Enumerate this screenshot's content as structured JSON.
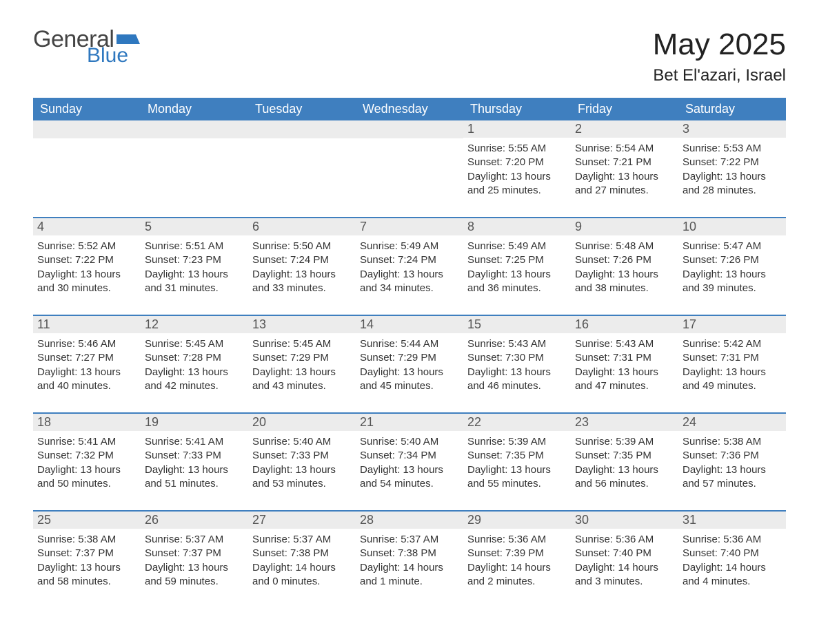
{
  "brand": {
    "word1": "General",
    "word2": "Blue",
    "flag_color": "#2f78bf",
    "text_gray": "#444444"
  },
  "title": "May 2025",
  "location": "Bet El'azari, Israel",
  "colors": {
    "header_bg": "#3f7fbf",
    "header_text": "#ffffff",
    "daynum_bg": "#ececec",
    "daynum_text": "#555555",
    "body_text": "#333333",
    "rule": "#3f7fbf",
    "page_bg": "#ffffff"
  },
  "fonts": {
    "title_size": 44,
    "location_size": 24,
    "dayhead_size": 18,
    "daynum_size": 18,
    "info_size": 15
  },
  "dayNames": [
    "Sunday",
    "Monday",
    "Tuesday",
    "Wednesday",
    "Thursday",
    "Friday",
    "Saturday"
  ],
  "labels": {
    "sunrise": "Sunrise: ",
    "sunset": "Sunset: ",
    "daylight": "Daylight: "
  },
  "weeks": [
    [
      null,
      null,
      null,
      null,
      {
        "n": "1",
        "sunrise": "5:55 AM",
        "sunset": "7:20 PM",
        "daylight": "13 hours and 25 minutes."
      },
      {
        "n": "2",
        "sunrise": "5:54 AM",
        "sunset": "7:21 PM",
        "daylight": "13 hours and 27 minutes."
      },
      {
        "n": "3",
        "sunrise": "5:53 AM",
        "sunset": "7:22 PM",
        "daylight": "13 hours and 28 minutes."
      }
    ],
    [
      {
        "n": "4",
        "sunrise": "5:52 AM",
        "sunset": "7:22 PM",
        "daylight": "13 hours and 30 minutes."
      },
      {
        "n": "5",
        "sunrise": "5:51 AM",
        "sunset": "7:23 PM",
        "daylight": "13 hours and 31 minutes."
      },
      {
        "n": "6",
        "sunrise": "5:50 AM",
        "sunset": "7:24 PM",
        "daylight": "13 hours and 33 minutes."
      },
      {
        "n": "7",
        "sunrise": "5:49 AM",
        "sunset": "7:24 PM",
        "daylight": "13 hours and 34 minutes."
      },
      {
        "n": "8",
        "sunrise": "5:49 AM",
        "sunset": "7:25 PM",
        "daylight": "13 hours and 36 minutes."
      },
      {
        "n": "9",
        "sunrise": "5:48 AM",
        "sunset": "7:26 PM",
        "daylight": "13 hours and 38 minutes."
      },
      {
        "n": "10",
        "sunrise": "5:47 AM",
        "sunset": "7:26 PM",
        "daylight": "13 hours and 39 minutes."
      }
    ],
    [
      {
        "n": "11",
        "sunrise": "5:46 AM",
        "sunset": "7:27 PM",
        "daylight": "13 hours and 40 minutes."
      },
      {
        "n": "12",
        "sunrise": "5:45 AM",
        "sunset": "7:28 PM",
        "daylight": "13 hours and 42 minutes."
      },
      {
        "n": "13",
        "sunrise": "5:45 AM",
        "sunset": "7:29 PM",
        "daylight": "13 hours and 43 minutes."
      },
      {
        "n": "14",
        "sunrise": "5:44 AM",
        "sunset": "7:29 PM",
        "daylight": "13 hours and 45 minutes."
      },
      {
        "n": "15",
        "sunrise": "5:43 AM",
        "sunset": "7:30 PM",
        "daylight": "13 hours and 46 minutes."
      },
      {
        "n": "16",
        "sunrise": "5:43 AM",
        "sunset": "7:31 PM",
        "daylight": "13 hours and 47 minutes."
      },
      {
        "n": "17",
        "sunrise": "5:42 AM",
        "sunset": "7:31 PM",
        "daylight": "13 hours and 49 minutes."
      }
    ],
    [
      {
        "n": "18",
        "sunrise": "5:41 AM",
        "sunset": "7:32 PM",
        "daylight": "13 hours and 50 minutes."
      },
      {
        "n": "19",
        "sunrise": "5:41 AM",
        "sunset": "7:33 PM",
        "daylight": "13 hours and 51 minutes."
      },
      {
        "n": "20",
        "sunrise": "5:40 AM",
        "sunset": "7:33 PM",
        "daylight": "13 hours and 53 minutes."
      },
      {
        "n": "21",
        "sunrise": "5:40 AM",
        "sunset": "7:34 PM",
        "daylight": "13 hours and 54 minutes."
      },
      {
        "n": "22",
        "sunrise": "5:39 AM",
        "sunset": "7:35 PM",
        "daylight": "13 hours and 55 minutes."
      },
      {
        "n": "23",
        "sunrise": "5:39 AM",
        "sunset": "7:35 PM",
        "daylight": "13 hours and 56 minutes."
      },
      {
        "n": "24",
        "sunrise": "5:38 AM",
        "sunset": "7:36 PM",
        "daylight": "13 hours and 57 minutes."
      }
    ],
    [
      {
        "n": "25",
        "sunrise": "5:38 AM",
        "sunset": "7:37 PM",
        "daylight": "13 hours and 58 minutes."
      },
      {
        "n": "26",
        "sunrise": "5:37 AM",
        "sunset": "7:37 PM",
        "daylight": "13 hours and 59 minutes."
      },
      {
        "n": "27",
        "sunrise": "5:37 AM",
        "sunset": "7:38 PM",
        "daylight": "14 hours and 0 minutes."
      },
      {
        "n": "28",
        "sunrise": "5:37 AM",
        "sunset": "7:38 PM",
        "daylight": "14 hours and 1 minute."
      },
      {
        "n": "29",
        "sunrise": "5:36 AM",
        "sunset": "7:39 PM",
        "daylight": "14 hours and 2 minutes."
      },
      {
        "n": "30",
        "sunrise": "5:36 AM",
        "sunset": "7:40 PM",
        "daylight": "14 hours and 3 minutes."
      },
      {
        "n": "31",
        "sunrise": "5:36 AM",
        "sunset": "7:40 PM",
        "daylight": "14 hours and 4 minutes."
      }
    ]
  ]
}
